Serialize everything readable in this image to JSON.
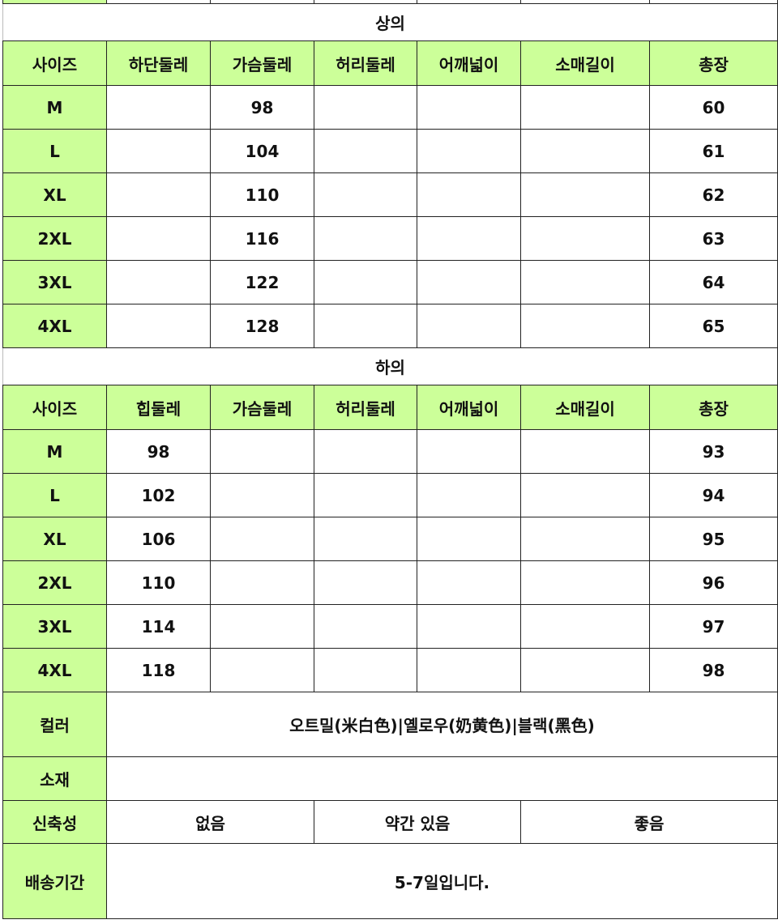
{
  "colors": {
    "header_bg": "#ccff99",
    "border": "#222222"
  },
  "top": {
    "title": "상의",
    "headers": [
      "사이즈",
      "하단둘레",
      "가슴둘레",
      "허리둘레",
      "어깨넓이",
      "소매길이",
      "총장"
    ],
    "rows": [
      [
        "M",
        "",
        "98",
        "",
        "",
        "",
        "60"
      ],
      [
        "L",
        "",
        "104",
        "",
        "",
        "",
        "61"
      ],
      [
        "XL",
        "",
        "110",
        "",
        "",
        "",
        "62"
      ],
      [
        "2XL",
        "",
        "116",
        "",
        "",
        "",
        "63"
      ],
      [
        "3XL",
        "",
        "122",
        "",
        "",
        "",
        "64"
      ],
      [
        "4XL",
        "",
        "128",
        "",
        "",
        "",
        "65"
      ]
    ]
  },
  "bottom": {
    "title": "하의",
    "headers": [
      "사이즈",
      "힙둘레",
      "가슴둘레",
      "허리둘레",
      "어깨넓이",
      "소매길이",
      "총장"
    ],
    "rows": [
      [
        "M",
        "98",
        "",
        "",
        "",
        "",
        "93"
      ],
      [
        "L",
        "102",
        "",
        "",
        "",
        "",
        "94"
      ],
      [
        "XL",
        "106",
        "",
        "",
        "",
        "",
        "95"
      ],
      [
        "2XL",
        "110",
        "",
        "",
        "",
        "",
        "96"
      ],
      [
        "3XL",
        "114",
        "",
        "",
        "",
        "",
        "97"
      ],
      [
        "4XL",
        "118",
        "",
        "",
        "",
        "",
        "98"
      ]
    ]
  },
  "info": {
    "color_label": "컬러",
    "color_value": "오트밀(米白色)|옐로우(奶黄色)|블랙(黑色)",
    "material_label": "소재",
    "material_value": "",
    "stretch_label": "신축성",
    "stretch_options": [
      "없음",
      "약간 있음",
      "좋음"
    ],
    "shipping_label": "배송기간",
    "shipping_value": "5-7일입니다."
  }
}
